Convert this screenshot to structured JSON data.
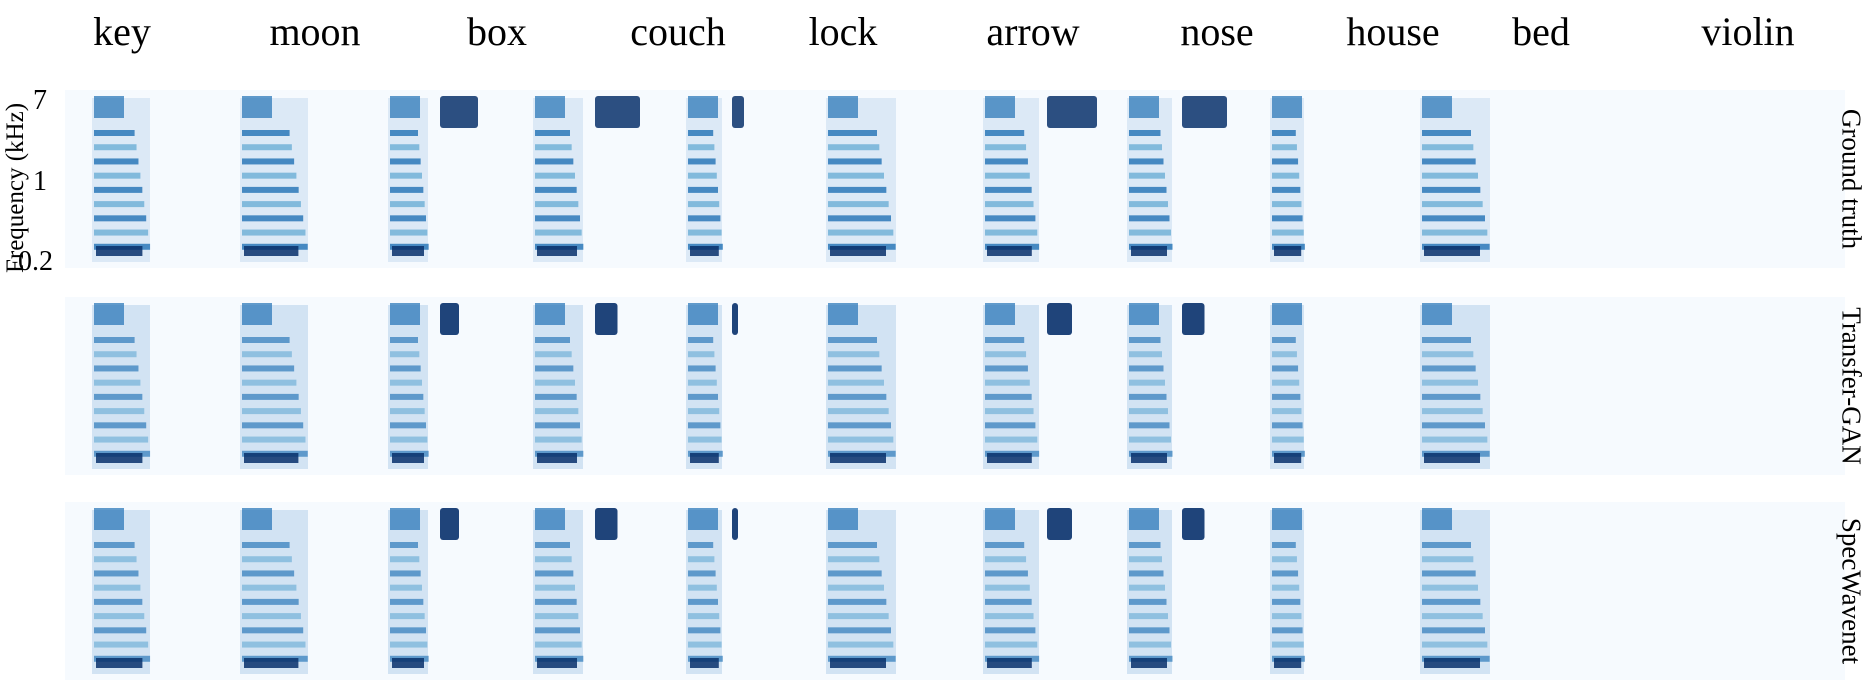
{
  "words": [
    "key",
    "moon",
    "box",
    "couch",
    "lock",
    "arrow",
    "nose",
    "house",
    "bed",
    "violin"
  ],
  "rows": [
    "Ground truth",
    "Transfer-GAN",
    "SpecWavenet"
  ],
  "y_axis": {
    "title": "Frequency (kHz)",
    "ticks": [
      "7",
      "1",
      "0.2"
    ]
  },
  "colors": {
    "background": "#f6fafe",
    "light_blue": "#c6dbef",
    "mid_blue": "#6baed6",
    "blue": "#2171b5",
    "dark_blue": "#08306b"
  }
}
